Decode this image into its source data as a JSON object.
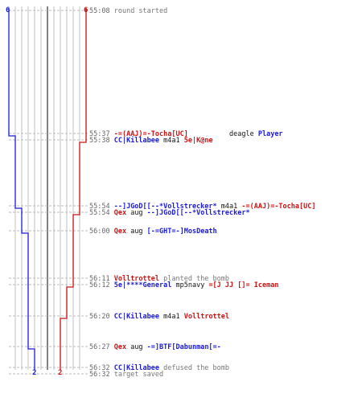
{
  "colors": {
    "ct": "#1a1ad8",
    "t": "#cc1111",
    "grid": "#c0c0c0",
    "dash": "#bbbbbb",
    "timestamp": "#666666"
  },
  "scores": {
    "ct_start": "6",
    "t_start": "6",
    "ct_end": "2",
    "t_end": "2"
  },
  "events": [
    {
      "time": "55:08",
      "parts": [
        {
          "text": "round started",
          "c": "gray"
        }
      ]
    },
    {
      "time": "55:37",
      "parts": [
        {
          "text": "-=(AAJ)=-Tocha[UC]",
          "c": "red"
        },
        {
          "text": "          deagle ",
          "c": "blk"
        },
        {
          "text": "Player",
          "c": "blue"
        }
      ]
    },
    {
      "time": "55:38",
      "parts": [
        {
          "text": "CC|Killabee",
          "c": "blue"
        },
        {
          "text": " m4a1 ",
          "c": "blk"
        },
        {
          "text": "5e|K@ne",
          "c": "red"
        }
      ]
    },
    {
      "time": "55:54",
      "parts": [
        {
          "text": "--]JGoD[[--*Vollstrecker*",
          "c": "blue"
        },
        {
          "text": " m4a1 ",
          "c": "blk"
        },
        {
          "text": "-=(AAJ)=-Tocha[UC]",
          "c": "red"
        }
      ]
    },
    {
      "time": "55:54",
      "parts": [
        {
          "text": "Qex",
          "c": "red"
        },
        {
          "text": " aug ",
          "c": "blk"
        },
        {
          "text": "--]JGoD[[--*Vollstrecker*",
          "c": "blue"
        }
      ]
    },
    {
      "time": "56:00",
      "parts": [
        {
          "text": "Qex",
          "c": "red"
        },
        {
          "text": " aug ",
          "c": "blk"
        },
        {
          "text": "[-=GHT=-]MosDeath",
          "c": "blue"
        }
      ]
    },
    {
      "time": "56:11",
      "parts": [
        {
          "text": "Volltrottel",
          "c": "red"
        },
        {
          "text": " planted the bomb",
          "c": "gray"
        }
      ]
    },
    {
      "time": "56:12",
      "parts": [
        {
          "text": "5e|****General",
          "c": "blue"
        },
        {
          "text": " mp5navy ",
          "c": "blk"
        },
        {
          "text": "=[J JJ []= Iceman",
          "c": "red"
        }
      ]
    },
    {
      "time": "56:20",
      "parts": [
        {
          "text": "CC|Killabee",
          "c": "blue"
        },
        {
          "text": " m4a1 ",
          "c": "blk"
        },
        {
          "text": "Volltrottel",
          "c": "red"
        }
      ]
    },
    {
      "time": "56:27",
      "parts": [
        {
          "text": "Qex",
          "c": "red"
        },
        {
          "text": " aug ",
          "c": "blk"
        },
        {
          "text": "-=]BTF[Dabunman[=-",
          "c": "blue"
        }
      ]
    },
    {
      "time": "56:32",
      "parts": [
        {
          "text": "CC|Killabee",
          "c": "blue"
        },
        {
          "text": " defused the bomb",
          "c": "gray"
        }
      ]
    },
    {
      "time": "56:32",
      "parts": [
        {
          "text": "target saved",
          "c": "gray"
        }
      ]
    }
  ]
}
